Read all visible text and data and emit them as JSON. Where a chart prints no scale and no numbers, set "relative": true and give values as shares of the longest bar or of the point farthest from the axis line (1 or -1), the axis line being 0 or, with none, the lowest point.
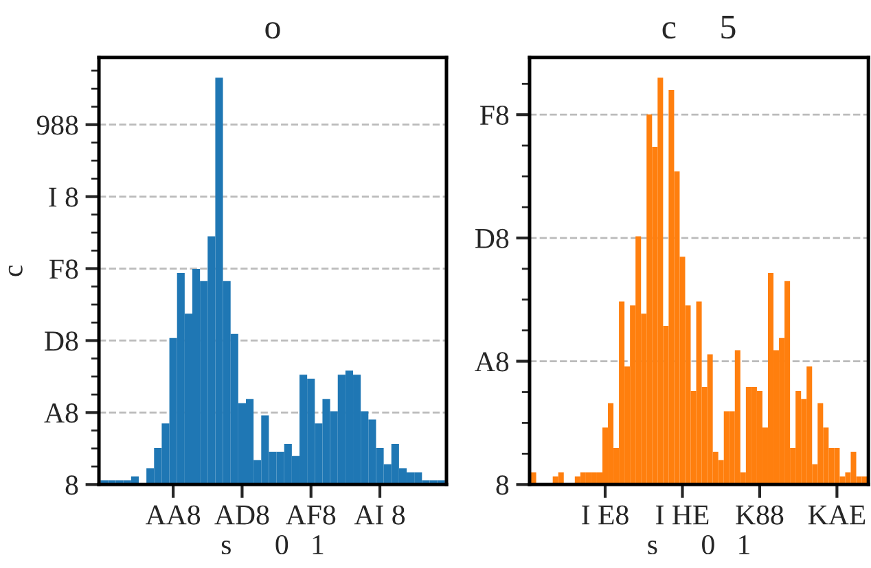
{
  "chart_data": [
    {
      "type": "bar",
      "relative": true,
      "title": "o",
      "xlabel": "s      0   1",
      "ylabel": "c",
      "color": "#1f77b4",
      "categories": [
        null,
        null,
        null,
        null,
        null,
        null,
        null,
        null,
        null,
        "AA8",
        null,
        null,
        null,
        null,
        null,
        null,
        null,
        null,
        "AD8",
        null,
        null,
        null,
        null,
        null,
        null,
        null,
        null,
        "AF8",
        null,
        null,
        null,
        null,
        null,
        null,
        null,
        null,
        "AI 8",
        null,
        null,
        null,
        null,
        null,
        null,
        null,
        null
      ],
      "values": [
        0.01,
        0.01,
        0.01,
        0.01,
        0.02,
        0,
        0.04,
        0.09,
        0.15,
        0.36,
        0.52,
        0.42,
        0.53,
        0.5,
        0.61,
        1,
        0.5,
        0.37,
        0.2,
        0.21,
        0.06,
        0.17,
        0.08,
        0.08,
        0.1,
        0.07,
        0.27,
        0.26,
        0.15,
        0.21,
        0.18,
        0.27,
        0.28,
        0.27,
        0.18,
        0.16,
        0.09,
        0.05,
        0.1,
        0.04,
        0.03,
        0.03,
        0.01,
        0.01,
        0.01
      ],
      "annotations": [
        "8",
        "A8",
        "D8",
        "F8",
        "I 8",
        "988"
      ],
      "grid": "y"
    },
    {
      "type": "bar",
      "relative": true,
      "title": "c     5",
      "xlabel": "s      0   1",
      "color": "#ff7f0e",
      "categories": [
        null,
        null,
        null,
        null,
        null,
        null,
        null,
        null,
        null,
        null,
        null,
        null,
        null,
        "I E8",
        null,
        null,
        null,
        null,
        null,
        null,
        null,
        null,
        null,
        null,
        null,
        null,
        null,
        "I HE",
        null,
        null,
        null,
        null,
        null,
        null,
        null,
        null,
        null,
        null,
        null,
        null,
        null,
        "K88",
        null,
        null,
        null,
        null,
        null,
        null,
        null,
        null,
        null,
        null,
        null,
        null,
        null,
        "KAE",
        null,
        null,
        null,
        null,
        null
      ],
      "values": [
        0.03,
        0,
        0,
        0,
        0.02,
        0.03,
        0,
        0,
        0.02,
        0.03,
        0.03,
        0.03,
        0.03,
        0.14,
        0.2,
        0.09,
        0.45,
        0.29,
        0.44,
        0.61,
        0.42,
        0.91,
        0.83,
        1,
        0.39,
        0.97,
        0.77,
        0.56,
        0.44,
        0.23,
        0.45,
        0.24,
        0.32,
        0.08,
        0.06,
        0.18,
        0.18,
        0.33,
        0.03,
        0.24,
        0.24,
        0.23,
        0.14,
        0.52,
        0.33,
        0.36,
        0.5,
        0.09,
        0.23,
        0.21,
        0.29,
        0.05,
        0.2,
        0.14,
        0.09,
        0.09,
        0.02,
        0.03,
        0.08,
        0.02,
        0.02
      ],
      "annotations": [
        "8",
        "A8",
        "D8",
        "F8"
      ],
      "grid": "y"
    }
  ]
}
